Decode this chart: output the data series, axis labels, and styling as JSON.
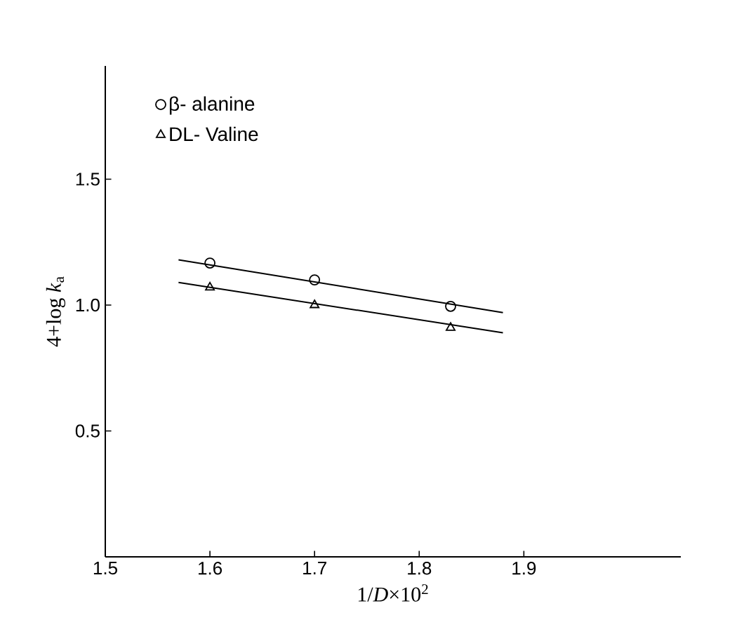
{
  "chart_data": {
    "type": "scatter",
    "xlabel": "1/*D*×10$^{2}$",
    "ylabel": "4+log *k*$_{a}$",
    "xlim": [
      1.5,
      2.05
    ],
    "ylim": [
      0,
      1.95
    ],
    "xticks": [
      1.5,
      1.6,
      1.7,
      1.8,
      1.9
    ],
    "yticks": [
      0.5,
      {
        "value": 1,
        "label": "1.0"
      },
      1.5
    ],
    "legend": "top left",
    "grid": false,
    "series": [
      {
        "name": "β- alanine",
        "color": "#000000",
        "marker": "circle",
        "x": [
          1.6,
          1.7,
          1.83
        ],
        "values": [
          1.167,
          1.1,
          0.995
        ]
      },
      {
        "name": "DL- Valine",
        "color": "#000000",
        "marker": "triangle",
        "x": [
          1.6,
          1.7,
          1.83
        ],
        "values": [
          1.07,
          1.0,
          0.91
        ]
      },
      {
        "type": "line",
        "color": "#000000",
        "x": [
          1.57,
          1.88
        ],
        "values": [
          1.18,
          0.97
        ]
      },
      {
        "type": "line",
        "color": "#000000",
        "x": [
          1.57,
          1.88
        ],
        "values": [
          1.09,
          0.89
        ]
      }
    ]
  }
}
